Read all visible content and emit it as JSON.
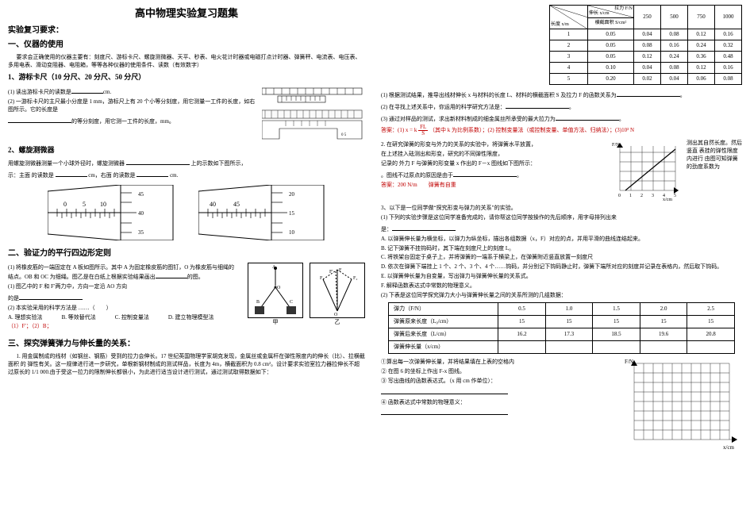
{
  "title_main": "高中物理实验复习题集",
  "left": {
    "req": "实验复习要求：",
    "sec1": "一、仪器的使用",
    "sec1_text": "要求会正确使用的仪器主要有：刻度尺、游标卡尺、螺旋测微器、天平、秒表、电火花计时器或电磁打点计时器、弹簧秤、电流表、电压表、多用电表、滑动变阻器、电阻箱，等等各种仪器的使用条件、读数（有效数字）",
    "sub1": "1、游标卡尺（10 分尺、20 分尺、50 分尺）",
    "sub1_l1": "(1) 读出游标卡尺的读数是",
    "sub1_unit": "cm.",
    "sub1_l2": "(2) 一游标卡尺的主尺最小分度是 1 mm，游标尺上有 20 个小等分刻度，用它测量一工件的长度，如右图所示。它的长度是",
    "sub1_l2_end": "的等分刻度，用它测一工件的长度，mm。",
    "sub2": "2、螺旋测微器",
    "sub2_l1": "用螺旋测微器测量一个小球外径时，螺旋测微器",
    "sub2_l1_end": "上的示数如下图所示，",
    "sub2_l2": "示：主面 的读数是",
    "sub2_l3": "cm，右面 的读数是",
    "sub2_l4": "cm.",
    "sec2": "二、验证力的平行四边形定则",
    "sec2_p1": "(1) 将橡皮筋的一端固定在 A 板如图所示。其中 A 为固定橡皮筋的图钉，O 为橡皮筋与细绳的结点。OB 和 OC 为细绳。图乙是在白纸上根据实验结果画出",
    "sec2_p1_end": "的图。",
    "sec2_p2": "(1) 图乙中的 F 和 F′两力中，方向一定沿 AO 方向",
    "sec2_p2_end": "的是",
    "sec2_q": "(2) 本实验采用的科学方法是 ……（　　）",
    "sec2_qA": "A. 理想实验法",
    "sec2_qB": "B. 等效替代法",
    "sec2_qC": "C. 控制变量法",
    "sec2_qD": "D. 建立物理模型法",
    "sec2_ans": "（1）F′；（2）B；",
    "sec3": "三、探究弹簧弹力与伸长量的关系：",
    "sec3_p": "1. 用金属制成的线材（如钢丝、钢筋）受到的拉力会伸长。17 世纪英国物理学家胡克发现，金属丝或金属杆在弹性限度内的伸长（比）、拉横截面积 的 弹性有关。这一规律进行进一步研究，单根新钢材制成的测试样品，长度为 4m，横截面积为 0.8 cm²。设计要求实验室拉力器拉伸长不超过原长的 1/1 000.由于受这一拉力的限制伸长都很小，为此进行适当设计进行测试，通过测试取得数据如下：",
    "fig_jia": "甲",
    "fig_yi": "乙"
  },
  "right": {
    "tbl_top": {
      "head_diag1": "伸长 x/cm",
      "head_diag2": "长度 x/m",
      "head_diag3": "横截面积 S/cm²",
      "head_f": "拉力 F/N",
      "forces": [
        "250",
        "500",
        "750",
        "1000"
      ],
      "rows": [
        {
          "len": "1",
          "cs": "0.05",
          "v": [
            "0.04",
            "0.08",
            "0.12",
            "0.16"
          ]
        },
        {
          "len": "2",
          "cs": "0.05",
          "v": [
            "0.08",
            "0.16",
            "0.24",
            "0.32"
          ]
        },
        {
          "len": "3",
          "cs": "0.05",
          "v": [
            "0.12",
            "0.24",
            "0.36",
            "0.48"
          ]
        },
        {
          "len": "4",
          "cs": "0.10",
          "v": [
            "0.04",
            "0.08",
            "0.12",
            "0.16"
          ]
        },
        {
          "len": "5",
          "cs": "0.20",
          "v": [
            "0.02",
            "0.04",
            "0.06",
            "0.08"
          ]
        }
      ]
    },
    "q1": "(1) 根据测试结果，推导出线材伸长 x 与材料的长度 L、材料的横截面积 S 及拉力 F 的函数关系为",
    "q2": "(2) 在寻找上述关系中，你运用的科学研究方法是：",
    "q3": "(3) 通过对样品的测试，求出新材料制成的细金属丝所承受的最大拉力为",
    "ans1_a": "答案：(1) x = k",
    "ans1_frac_top": "FL",
    "ans1_frac_bot": "S",
    "ans1_b": "（其中 k 为比例系数）；(2) 控制变量法（或控制变量、单值方法、归纳法）；(3)10³ N",
    "p2a": "2. 在研究弹簧的形变与外力的关系的实验中，将弹簧水平放置，",
    "p2b": "测出其自然长度。然后竖直",
    "p2c": "在上述挂入砝测出和形变，研究的不同弹性限度，",
    "p2d": "表挂的弹性限度内进行",
    "p2e": "记录的 外力 F 与弹簧的形变量 x 作出的 F－x 图线如下图所示：",
    "p2f": "由图可知弹簧的劲度系数为",
    "p2g": "。图线不过原点的原因是由于",
    "ans2": "答案：200 N/m　　弹簧有自重",
    "graph_xticks": [
      "0",
      "1",
      "2",
      "3",
      "4",
      "5"
    ],
    "graph_xunit": "x/cm",
    "graph_ylabel": "F/N",
    "p3": "3、以下是一位同学做“探究形变与弹力的关系”的实验。",
    "p3_1": "(1) 下列的实验步骤是这位同学准备完成的，请你帮这位同学按操作的先后顺序，用字母排列出来",
    "p3_1_end": "是：",
    "stepA": "A. 以弹簧伸长量为横坐标，以弹力为纵坐标，描出各组数据（x，F）对应的点，并用平滑的曲线连结起来。",
    "stepB": "B. 记下弹簧不挂钩码时，其下端在刻度尺上的刻度 L₀",
    "stepC": "C. 将铁架台固定于桌子上，并将弹簧的一端系于横梁上，在弹簧附近竖直放置一刻度尺",
    "stepD": "D. 依次在弹簧下端挂上 1 个、2 个、3 个、4 个……钩码，并分别记下钩码静止时，弹簧下端所对应的刻度并记录在表格内，然后取下钩码。",
    "stepE": "E. 以弹簧伸长量为自变量，写出弹力与弹簧伸长量的关系式。",
    "stepF": "F. 解释函数表达式中常数的物理意义。",
    "p3_2": "(2) 下表是这位同学探究弹力大小与弹簧伸长量之间的关系所测的几组数据：",
    "tbl_mid": {
      "r1": [
        "弹力（F/N）",
        "0.5",
        "1.0",
        "1.5",
        "2.0",
        "2.5"
      ],
      "r2": [
        "弹簧原来长度（L₀/cm）",
        "15",
        "15",
        "15",
        "15",
        "15"
      ],
      "r3": [
        "弹簧后来长度（L/cm）",
        "16.2",
        "17.3",
        "18.5",
        "19.6",
        "20.8"
      ],
      "r4": [
        "弹簧伸长量（x/cm）",
        "",
        "",
        "",
        "",
        ""
      ]
    },
    "q_a": "①算出每一次弹簧伸长量，并将结果填在上表的空格内",
    "q_b": "② 在图 6 的坐标上作出 F-x 图线。",
    "q_c": "③ 写出曲线的函数表达式。（x 用 cm 作单位）：",
    "q_d": "④ 函数表达式中常数的物理意义：",
    "grid_xlabel": "x/cm",
    "grid_ylabel": "F/N"
  },
  "colors": {
    "text": "#000000",
    "red": "#c00000",
    "blue": "#0000cc",
    "grid": "#000000",
    "bg": "#ffffff",
    "barrel_fill": "#ffffff",
    "barrel_stroke": "#000000"
  }
}
